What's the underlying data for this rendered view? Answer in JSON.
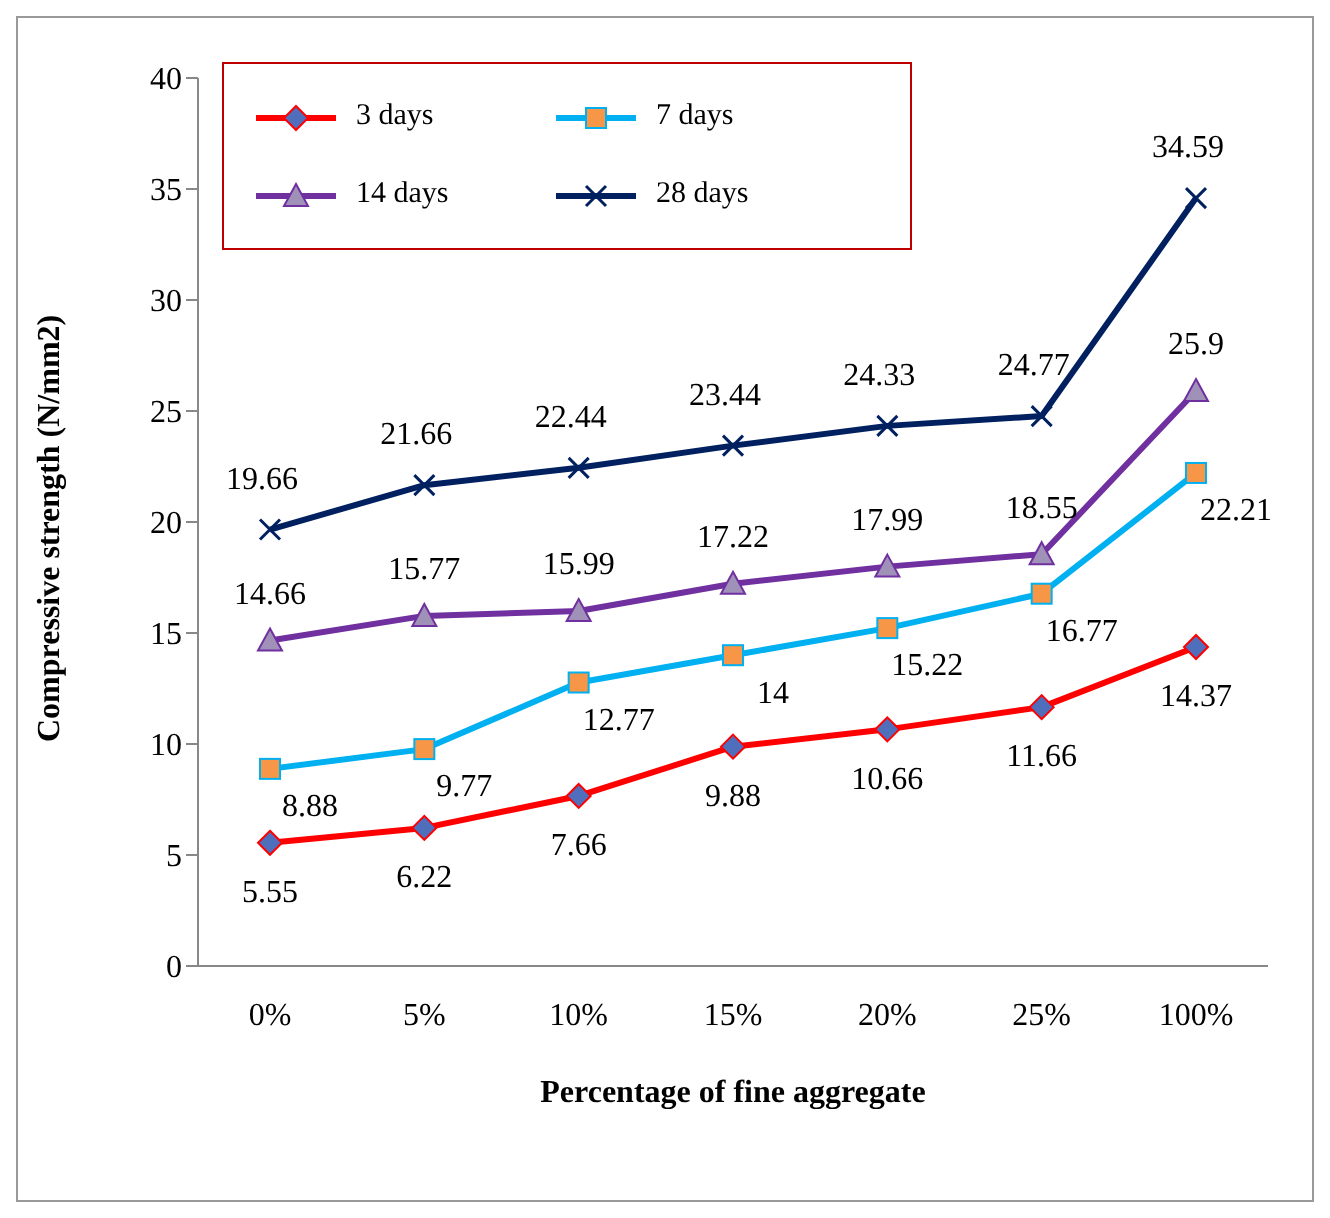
{
  "chart_data": {
    "type": "line",
    "xlabel": "Percentage of fine aggregate",
    "ylabel": "Compressive strength (N/mm2)",
    "categories": [
      "0%",
      "5%",
      "10%",
      "15%",
      "20%",
      "25%",
      "100%"
    ],
    "series": [
      {
        "name": "3 days",
        "color": "#ff0000",
        "marker": "diamond",
        "values": [
          5.55,
          6.22,
          7.66,
          9.88,
          10.66,
          11.66,
          14.37
        ]
      },
      {
        "name": "7 days",
        "color": "#00b0f0",
        "marker": "square",
        "values": [
          8.88,
          9.77,
          12.77,
          14,
          15.22,
          16.77,
          22.21
        ]
      },
      {
        "name": "14 days",
        "color": "#7030a0",
        "marker": "triangle",
        "values": [
          14.66,
          15.77,
          15.99,
          17.22,
          17.99,
          18.55,
          25.9
        ]
      },
      {
        "name": "28 days",
        "color": "#002060",
        "marker": "cross",
        "values": [
          19.66,
          21.66,
          22.44,
          23.44,
          24.33,
          24.77,
          34.59
        ]
      }
    ],
    "ylim": [
      0,
      40
    ],
    "yticks": [
      0,
      5,
      10,
      15,
      20,
      25,
      30,
      35,
      40
    ],
    "grid": false,
    "legend": "top left",
    "data_labels": true,
    "line_style": "solid"
  }
}
